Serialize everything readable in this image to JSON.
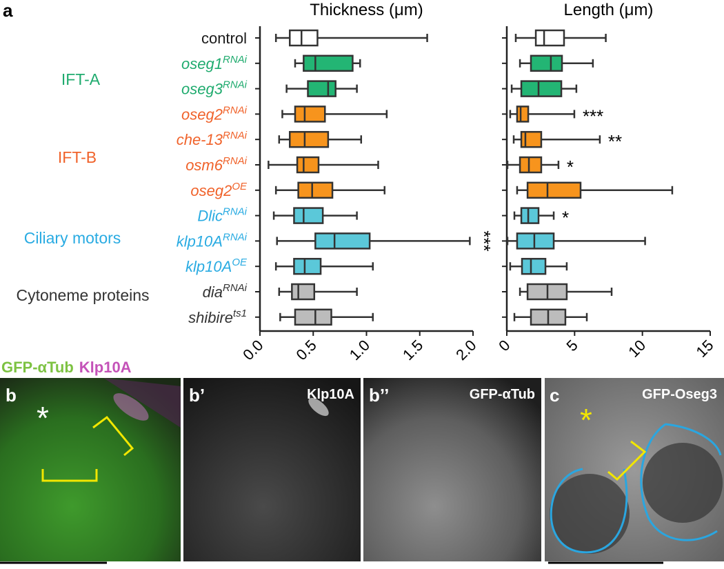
{
  "panel_label": "a",
  "chart_data": [
    {
      "type": "box",
      "title": "Thickness (μm)",
      "categories": [
        "control",
        "oseg1",
        "oseg3",
        "oseg2",
        "che-13",
        "osm6",
        "oseg2",
        "Dlic",
        "klp10A",
        "klp10A",
        "dia",
        "shibire"
      ],
      "superscripts": [
        null,
        "RNAi",
        "RNAi",
        "RNAi",
        "RNAi",
        "RNAi",
        "OE",
        "RNAi",
        "RNAi",
        "OE",
        "RNAi",
        "ts1"
      ],
      "category_colors": [
        "#1a1a1a",
        "#1fab6e",
        "#1fab6e",
        "#f0622a",
        "#f0622a",
        "#f0622a",
        "#f0622a",
        "#29abe2",
        "#29abe2",
        "#29abe2",
        "#333333",
        "#333333"
      ],
      "box_colors": [
        "#ffffff",
        "#23b574",
        "#23b574",
        "#f7941d",
        "#f7941d",
        "#f7941d",
        "#f7941d",
        "#5bc8d9",
        "#5bc8d9",
        "#5bc8d9",
        "#bcbcbc",
        "#bcbcbc"
      ],
      "groups": [
        {
          "name": "IFT-A",
          "color": "#1fab6e"
        },
        {
          "name": "IFT-B",
          "color": "#f0622a"
        },
        {
          "name": "Ciliary motors",
          "color": "#29abe2"
        },
        {
          "name": "Cytoneme proteins",
          "color": "#333333"
        }
      ],
      "values": [
        [
          0.15,
          0.28,
          0.39,
          0.54,
          1.57
        ],
        [
          0.33,
          0.41,
          0.52,
          0.87,
          0.94
        ],
        [
          0.25,
          0.45,
          0.64,
          0.71,
          0.91
        ],
        [
          0.21,
          0.33,
          0.42,
          0.61,
          1.19
        ],
        [
          0.18,
          0.28,
          0.42,
          0.64,
          0.95
        ],
        [
          0.08,
          0.35,
          0.41,
          0.55,
          1.11
        ],
        [
          0.15,
          0.36,
          0.49,
          0.68,
          1.17
        ],
        [
          0.13,
          0.32,
          0.41,
          0.59,
          0.91
        ],
        [
          0.16,
          0.52,
          0.7,
          1.03,
          1.97
        ],
        [
          0.15,
          0.32,
          0.42,
          0.57,
          1.06
        ],
        [
          0.18,
          0.3,
          0.36,
          0.51,
          0.91
        ],
        [
          0.19,
          0.33,
          0.52,
          0.67,
          1.06
        ]
      ],
      "annotations": [
        null,
        null,
        null,
        null,
        null,
        null,
        null,
        null,
        "***",
        null,
        null,
        null
      ],
      "xlim": [
        0,
        2
      ],
      "xticks": [
        {
          "value": 0,
          "label": "0.0"
        },
        {
          "value": 0.5,
          "label": "0.5"
        },
        {
          "value": 1,
          "label": "1.0"
        },
        {
          "value": 1.5,
          "label": "1.5"
        },
        {
          "value": 2,
          "label": "2.0"
        }
      ]
    },
    {
      "type": "box",
      "title": "Length (μm)",
      "values": [
        [
          0.66,
          2.14,
          2.75,
          4.22,
          7.3
        ],
        [
          0.97,
          1.78,
          3.25,
          4.07,
          6.35
        ],
        [
          0.36,
          1.07,
          2.34,
          4.02,
          5.13
        ],
        [
          0.25,
          0.76,
          1.02,
          1.58,
          4.98
        ],
        [
          0.51,
          1.07,
          1.37,
          2.54,
          6.86
        ],
        [
          0.05,
          0.97,
          1.63,
          2.54,
          3.81
        ],
        [
          0.76,
          1.53,
          3.0,
          5.44,
          12.2
        ],
        [
          0.56,
          1.07,
          1.58,
          2.34,
          3.46
        ],
        [
          0.05,
          0.76,
          2.03,
          3.46,
          10.2
        ],
        [
          0.25,
          1.12,
          1.78,
          2.85,
          4.42
        ],
        [
          0.97,
          1.53,
          3.0,
          4.42,
          7.73
        ],
        [
          0.56,
          1.78,
          3.05,
          4.32,
          5.9
        ]
      ],
      "annotations": [
        null,
        null,
        null,
        "***",
        "**",
        "*",
        null,
        "*",
        null,
        null,
        null,
        null
      ],
      "xlim": [
        0,
        15
      ],
      "xticks": [
        0,
        5,
        10,
        15
      ]
    }
  ],
  "channel_legend": [
    {
      "text": "GFP-αTub",
      "color": "#7dc242"
    },
    {
      "text": "Klp10A",
      "color": "#c452b8"
    }
  ],
  "image_panels": [
    {
      "label": "b"
    },
    {
      "label": "b’",
      "caption": "Klp10A"
    },
    {
      "label": "b’’",
      "caption": "GFP-αTub"
    },
    {
      "label": "c",
      "caption": "GFP-Oseg3"
    }
  ]
}
